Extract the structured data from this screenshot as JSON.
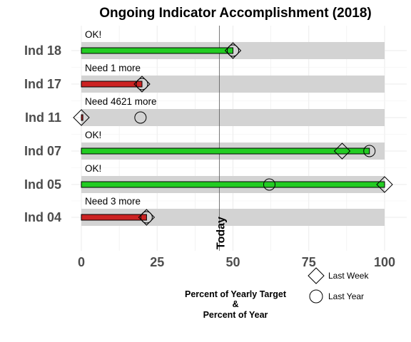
{
  "chart_data": {
    "type": "bar",
    "title": "Ongoing Indicator Accomplishment (2018)",
    "xlabel_lines": [
      "Percent of Yearly Target",
      "&",
      "Percent of Year"
    ],
    "xlim": [
      0,
      100
    ],
    "xticks": [
      0,
      25,
      50,
      75,
      100
    ],
    "today_label": "Today",
    "today_value": 45.5,
    "legend": {
      "last_week": "Last Week",
      "last_year": "Last Year",
      "placement": "bottom-right"
    },
    "colors": {
      "on_track": "#22cc22",
      "behind": "#cc2222",
      "track": "#d3d3d3"
    },
    "categories": [
      "Ind 18",
      "Ind 17",
      "Ind 11",
      "Ind 07",
      "Ind 05",
      "Ind 04"
    ],
    "rows": [
      {
        "name": "Ind 18",
        "status": "OK!",
        "value": 50,
        "last_week": 50,
        "last_year": 50,
        "on_track": true
      },
      {
        "name": "Ind 17",
        "status": "Need 1 more",
        "value": 20,
        "last_week": 20,
        "last_year": 20,
        "on_track": false
      },
      {
        "name": "Ind 11",
        "status": "Need 4621 more",
        "value": 0.5,
        "last_week": 0,
        "last_year": 19.5,
        "on_track": false
      },
      {
        "name": "Ind 07",
        "status": "OK!",
        "value": 95,
        "last_week": 86,
        "last_year": 95,
        "on_track": true
      },
      {
        "name": "Ind 05",
        "status": "OK!",
        "value": 100,
        "last_week": 100,
        "last_year": 62,
        "on_track": true
      },
      {
        "name": "Ind 04",
        "status": "Need 3 more",
        "value": 21.5,
        "last_week": 21.5,
        "last_year": 21.5,
        "on_track": false
      }
    ]
  }
}
